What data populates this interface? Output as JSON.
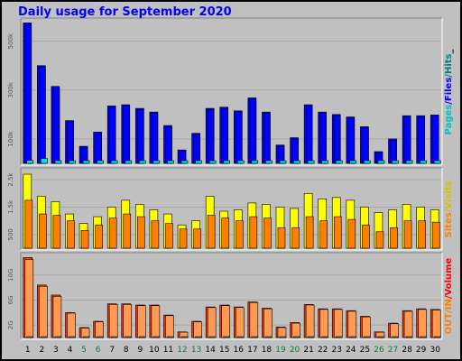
{
  "title": "Daily usage for September 2020",
  "colors": {
    "background": "#c0c0c0",
    "hits": "#0000ff",
    "hits_edge": "#000090",
    "files": "#0000ff",
    "pages": "#00e0e0",
    "visits": "#ffff00",
    "sites": "#ff8000",
    "volume": "#ff3300",
    "in_out": "#ff9a55",
    "weekend_label": "#008040",
    "weekday_label": "#000000",
    "label_hits": "#008080",
    "label_files": "#0000ff",
    "label_pages": "#00c0c0",
    "label_visits": "#d4c000",
    "label_sites": "#ff8000",
    "label_volume": "#ff0000",
    "label_inout": "#ff8000"
  },
  "chart_data": [
    {
      "type": "bar",
      "panel": "hits-files-pages",
      "categories": [
        "1",
        "2",
        "3",
        "4",
        "5",
        "6",
        "7",
        "8",
        "9",
        "10",
        "11",
        "12",
        "13",
        "14",
        "15",
        "16",
        "17",
        "18",
        "19",
        "20",
        "21",
        "22",
        "23",
        "24",
        "25",
        "26",
        "27",
        "28",
        "29",
        "30"
      ],
      "weekend": [
        "5",
        "6",
        "12",
        "13",
        "19",
        "20",
        "26",
        "27"
      ],
      "ylim": [
        0,
        580000
      ],
      "yticks": [
        {
          "value": 100000,
          "label": "100k"
        },
        {
          "value": 300000,
          "label": "300k"
        },
        {
          "value": 500000,
          "label": "500k"
        }
      ],
      "legend": [
        {
          "text": "Hits",
          "color": "label_hits"
        },
        {
          "text": "Files",
          "color": "label_files"
        },
        {
          "text": "Pages",
          "color": "label_pages"
        }
      ],
      "legend_separator": "/",
      "legend_tail": "_",
      "series": [
        {
          "name": "Hits",
          "values": [
            575000,
            400000,
            315000,
            175000,
            70000,
            128000,
            235000,
            240000,
            225000,
            210000,
            155000,
            55000,
            123000,
            225000,
            230000,
            215000,
            268000,
            210000,
            75000,
            105000,
            240000,
            210000,
            200000,
            190000,
            150000,
            48000,
            100000,
            195000,
            195000,
            198000
          ]
        },
        {
          "name": "Files",
          "values": [
            565000,
            395000,
            305000,
            170000,
            65000,
            120000,
            228000,
            235000,
            220000,
            205000,
            150000,
            50000,
            118000,
            220000,
            225000,
            210000,
            262000,
            205000,
            70000,
            100000,
            235000,
            205000,
            195000,
            185000,
            145000,
            45000,
            95000,
            190000,
            190000,
            193000
          ]
        },
        {
          "name": "Pages",
          "values": [
            12000,
            20000,
            8000,
            5000,
            3000,
            5000,
            9000,
            10000,
            9000,
            6000,
            5000,
            3000,
            4000,
            6000,
            7000,
            6000,
            7000,
            6000,
            3000,
            4000,
            7000,
            6000,
            6000,
            5000,
            4000,
            3000,
            3000,
            5000,
            5000,
            5000
          ]
        }
      ]
    },
    {
      "type": "bar",
      "panel": "visits-sites",
      "categories": [
        "1",
        "2",
        "3",
        "4",
        "5",
        "6",
        "7",
        "8",
        "9",
        "10",
        "11",
        "12",
        "13",
        "14",
        "15",
        "16",
        "17",
        "18",
        "19",
        "20",
        "21",
        "22",
        "23",
        "24",
        "25",
        "26",
        "27",
        "28",
        "29",
        "30"
      ],
      "ylim": [
        0,
        2800
      ],
      "yticks": [
        {
          "value": 500,
          "label": "500"
        },
        {
          "value": 1500,
          "label": "1.5k"
        },
        {
          "value": 2500,
          "label": "2.5k"
        }
      ],
      "legend": [
        {
          "text": "Visits",
          "color": "label_visits"
        },
        {
          "text": "Sites",
          "color": "label_sites"
        }
      ],
      "legend_separator": "/",
      "series": [
        {
          "name": "Visits",
          "values": [
            2700,
            1900,
            1700,
            1250,
            900,
            1150,
            1500,
            1750,
            1600,
            1400,
            1250,
            850,
            1000,
            1900,
            1350,
            1400,
            1650,
            1600,
            1500,
            1450,
            2000,
            1800,
            1850,
            1750,
            1500,
            1300,
            1400,
            1600,
            1500,
            1400
          ]
        },
        {
          "name": "Sites",
          "values": [
            1750,
            1250,
            1200,
            1000,
            650,
            850,
            1100,
            1250,
            1150,
            1000,
            900,
            700,
            700,
            1200,
            1100,
            1000,
            1150,
            1100,
            750,
            750,
            1150,
            1000,
            1150,
            1050,
            850,
            600,
            750,
            1000,
            1000,
            950
          ]
        }
      ]
    },
    {
      "type": "bar",
      "panel": "volume-inout",
      "categories": [
        "1",
        "2",
        "3",
        "4",
        "5",
        "6",
        "7",
        "8",
        "9",
        "10",
        "11",
        "12",
        "13",
        "14",
        "15",
        "16",
        "17",
        "18",
        "19",
        "20",
        "21",
        "22",
        "23",
        "24",
        "25",
        "26",
        "27",
        "28",
        "29",
        "30"
      ],
      "ylim": [
        0,
        13
      ],
      "yticks": [
        {
          "value": 2,
          "label": "2G"
        },
        {
          "value": 6,
          "label": "6G"
        },
        {
          "value": 10,
          "label": "10G"
        }
      ],
      "legend": [
        {
          "text": "Volume",
          "color": "label_volume"
        },
        {
          "text": "IN",
          "color": "label_inout"
        },
        {
          "text": "OUT",
          "color": "label_inout"
        }
      ],
      "legend_separator": "/",
      "series": [
        {
          "name": "Volume",
          "values": [
            12.8,
            8.4,
            6.8,
            4.0,
            1.6,
            2.6,
            5.4,
            5.4,
            5.2,
            5.2,
            3.6,
            0.9,
            2.6,
            4.9,
            5.2,
            4.9,
            5.7,
            4.7,
            1.7,
            2.4,
            5.3,
            4.6,
            4.6,
            4.3,
            3.4,
            0.9,
            2.3,
            4.3,
            4.6,
            4.5
          ]
        },
        {
          "name": "IN",
          "values": [
            12.5,
            8.2,
            6.6,
            3.9,
            1.5,
            2.5,
            5.3,
            5.3,
            5.1,
            5.1,
            3.5,
            0.85,
            2.5,
            4.8,
            5.1,
            4.8,
            5.6,
            4.6,
            1.6,
            2.3,
            5.2,
            4.5,
            4.5,
            4.2,
            3.3,
            0.85,
            2.2,
            4.2,
            4.5,
            4.4
          ]
        },
        {
          "name": "OUT",
          "values": [
            0.1,
            0.1,
            0.1,
            0.05,
            0.03,
            0.05,
            0.08,
            0.08,
            0.08,
            0.08,
            0.05,
            0.02,
            0.05,
            0.08,
            0.08,
            0.08,
            0.1,
            0.08,
            0.03,
            0.04,
            0.08,
            0.08,
            0.08,
            0.07,
            0.05,
            0.02,
            0.04,
            0.07,
            0.08,
            0.08
          ]
        }
      ]
    }
  ]
}
